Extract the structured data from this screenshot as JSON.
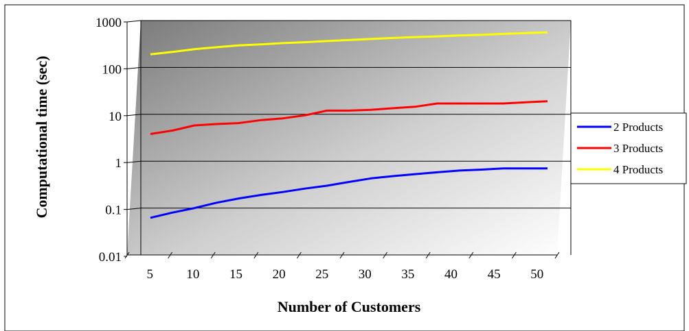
{
  "chart_data": {
    "type": "line",
    "title": "",
    "xlabel": "Number of Customers",
    "ylabel": "Computational time (sec)",
    "y_scale": "log",
    "ylim": [
      0.01,
      1000
    ],
    "y_ticks": [
      "0.01",
      "0.1",
      "1",
      "10",
      "100",
      "1000"
    ],
    "y_tick_values": [
      0.01,
      0.1,
      1,
      10,
      100,
      1000
    ],
    "x_categories": [
      "5",
      "10",
      "15",
      "20",
      "25",
      "30",
      "35",
      "40",
      "45",
      "50"
    ],
    "x": [
      5,
      7.5,
      10,
      12.5,
      15,
      17.5,
      20,
      22.5,
      25,
      27.5,
      30,
      32.5,
      35,
      37.5,
      40,
      42.5,
      45,
      47.5,
      50
    ],
    "grid": true,
    "legend_position": "right",
    "series": [
      {
        "name": "2 Products",
        "color": "#0000ff",
        "values": [
          0.062,
          0.08,
          0.1,
          0.13,
          0.16,
          0.19,
          0.22,
          0.26,
          0.3,
          0.36,
          0.43,
          0.48,
          0.53,
          0.58,
          0.63,
          0.66,
          0.7,
          0.7,
          0.7
        ]
      },
      {
        "name": "3 Products",
        "color": "#ff0000",
        "values": [
          3.8,
          4.5,
          5.8,
          6.2,
          6.5,
          7.5,
          8.2,
          9.5,
          12,
          12,
          12.5,
          13.5,
          14.5,
          17,
          17,
          17,
          17,
          18,
          19
        ]
      },
      {
        "name": "4 Products",
        "color": "#ffff00",
        "values": [
          190,
          215,
          245,
          270,
          295,
          310,
          330,
          345,
          365,
          385,
          405,
          425,
          445,
          460,
          480,
          495,
          520,
          540,
          560
        ]
      }
    ]
  }
}
